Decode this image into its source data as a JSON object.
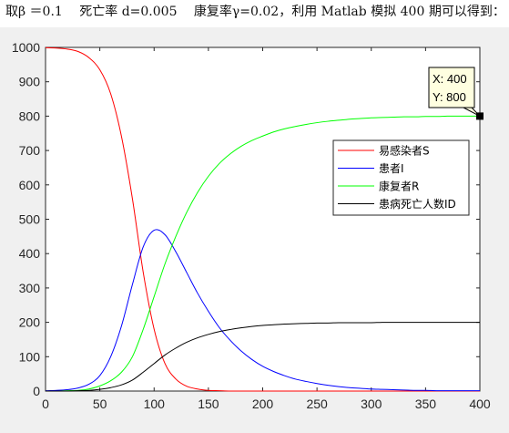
{
  "caption": "取β ＝0.1　 死亡率 d=0.005　 康复率γ=0.02，利用 Matlab 模拟 400 期可以得到：",
  "datatip": {
    "x_text": "X: 400",
    "y_text": "Y: 800",
    "x": 400,
    "y": 800
  },
  "chart_data": {
    "type": "line",
    "title": "",
    "xlabel": "",
    "ylabel": "",
    "xlim": [
      0,
      400
    ],
    "ylim": [
      0,
      1000
    ],
    "xticks": [
      0,
      50,
      100,
      150,
      200,
      250,
      300,
      350,
      400
    ],
    "yticks": [
      0,
      100,
      200,
      300,
      400,
      500,
      600,
      700,
      800,
      900,
      1000
    ],
    "grid": false,
    "legend_position": "upper-right",
    "x": [
      0,
      10,
      20,
      30,
      40,
      50,
      60,
      70,
      80,
      90,
      100,
      110,
      120,
      130,
      140,
      150,
      160,
      170,
      180,
      190,
      200,
      210,
      220,
      230,
      240,
      250,
      260,
      270,
      280,
      290,
      300,
      310,
      320,
      330,
      340,
      350,
      360,
      370,
      380,
      390,
      400
    ],
    "series": [
      {
        "name": "易感染者S",
        "color": "#ff0000",
        "values": [
          999,
          998,
          995,
          988,
          970,
          935,
          865,
          740,
          560,
          345,
          180,
          80,
          35,
          14,
          6,
          2,
          1,
          0,
          0,
          0,
          0,
          0,
          0,
          0,
          0,
          0,
          0,
          0,
          0,
          0,
          0,
          0,
          0,
          0,
          0,
          0,
          0,
          0,
          0,
          0,
          0
        ]
      },
      {
        "name": "患者I",
        "color": "#0000ff",
        "values": [
          1,
          2,
          4,
          9,
          20,
          45,
          100,
          190,
          310,
          420,
          468,
          455,
          405,
          345,
          285,
          232,
          185,
          148,
          117,
          92,
          72,
          57,
          45,
          35,
          28,
          22,
          17,
          13,
          10,
          8,
          6,
          5,
          4,
          3,
          2,
          2,
          1,
          1,
          1,
          1,
          1
        ]
      },
      {
        "name": "康复者R",
        "color": "#00ff00",
        "values": [
          0,
          0,
          1,
          2,
          6,
          15,
          30,
          55,
          100,
          180,
          275,
          370,
          450,
          520,
          578,
          625,
          662,
          690,
          712,
          729,
          742,
          754,
          763,
          770,
          776,
          781,
          785,
          788,
          791,
          793,
          795,
          796,
          797,
          798,
          798,
          799,
          799,
          800,
          800,
          800,
          800
        ]
      },
      {
        "name": "患病死亡人数ID",
        "color": "#000000",
        "values": [
          0,
          0,
          0,
          1,
          2,
          5,
          10,
          18,
          32,
          55,
          80,
          105,
          125,
          142,
          155,
          165,
          173,
          179,
          184,
          188,
          191,
          193,
          195,
          196,
          197,
          198,
          198,
          199,
          199,
          199,
          199,
          200,
          200,
          200,
          200,
          200,
          200,
          200,
          200,
          200,
          200
        ]
      }
    ]
  }
}
